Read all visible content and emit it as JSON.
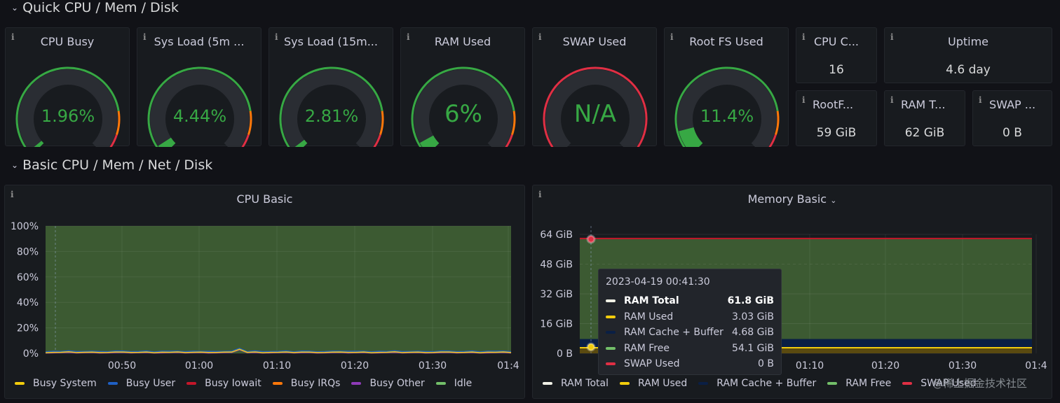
{
  "rows": {
    "quick": "Quick CPU / Mem / Disk",
    "basic": "Basic CPU / Mem / Net / Disk"
  },
  "info_glyph": "i",
  "gauges": [
    {
      "title": "CPU Busy",
      "value": "1.96%",
      "fraction": 0.0196
    },
    {
      "title": "Sys Load (5m ...",
      "value": "4.44%",
      "fraction": 0.0444
    },
    {
      "title": "Sys Load (15m...",
      "value": "2.81%",
      "fraction": 0.0281
    },
    {
      "title": "RAM Used",
      "value": "6%",
      "fraction": 0.06
    },
    {
      "title": "SWAP Used",
      "value": "N/A",
      "fraction": 0
    },
    {
      "title": "Root FS Used",
      "value": "11.4%",
      "fraction": 0.114
    }
  ],
  "stats": [
    {
      "title": "CPU C...",
      "value": "16"
    },
    {
      "title": "Uptime",
      "value": "4.6 day"
    },
    {
      "title": "RootF...",
      "value": "59 GiB"
    },
    {
      "title": "RAM T...",
      "value": "62 GiB"
    },
    {
      "title": "SWAP ...",
      "value": "0 B"
    }
  ],
  "colors": {
    "green": "#37a844",
    "yellow": "#f2cc0c",
    "orange": "#ff780a",
    "red": "#e02f44",
    "blue": "#1f60c4",
    "purple": "#8f3bb8",
    "lightgreen": "#73bf69",
    "white": "#f0f0e6",
    "darkred": "#c4162a",
    "navy": "#0a1f45",
    "panel_bg": "#181b1f",
    "area": "#3c5a32"
  },
  "cpu_panel": {
    "title": "CPU Basic"
  },
  "memory_panel": {
    "title": "Memory Basic",
    "title_icon": "chevron-down-icon"
  },
  "chart_data": [
    {
      "type": "area",
      "title": "CPU Basic",
      "y_ticks": [
        "100%",
        "80%",
        "60%",
        "40%",
        "20%",
        "0%"
      ],
      "x_ticks": [
        "00:50",
        "01:00",
        "01:10",
        "01:20",
        "01:30",
        "01:4"
      ],
      "ylim": [
        0,
        100
      ],
      "series": [
        {
          "name": "Busy System",
          "color": "#f2cc0c",
          "values": [
            0.5,
            0.6,
            0.5,
            0.7,
            0.5,
            0.6
          ]
        },
        {
          "name": "Busy User",
          "color": "#1f60c4",
          "values": [
            1.2,
            1.4,
            1.1,
            1.5,
            1.3,
            1.2
          ]
        },
        {
          "name": "Busy Iowait",
          "color": "#c4162a",
          "values": [
            0,
            0,
            0,
            0,
            0,
            0
          ]
        },
        {
          "name": "Busy IRQs",
          "color": "#ff780a",
          "values": [
            0,
            0,
            0,
            0,
            0,
            0
          ]
        },
        {
          "name": "Busy Other",
          "color": "#8f3bb8",
          "values": [
            0.2,
            0.2,
            0.2,
            0.2,
            0.2,
            0.2
          ]
        },
        {
          "name": "Idle",
          "color": "#73bf69",
          "values": [
            98,
            97.8,
            98.2,
            97.6,
            98,
            98
          ]
        }
      ]
    },
    {
      "type": "area",
      "title": "Memory Basic",
      "y_ticks": [
        "64 GiB",
        "48 GiB",
        "32 GiB",
        "16 GiB",
        "0 B"
      ],
      "x_ticks": [
        "01:10",
        "01:20",
        "01:30",
        "01:4"
      ],
      "ylim": [
        0,
        64
      ],
      "series": [
        {
          "name": "RAM Total",
          "color": "#f0f0e6",
          "value_gib": 61.8
        },
        {
          "name": "RAM Used",
          "color": "#f2cc0c",
          "value_gib": 3.03
        },
        {
          "name": "RAM Cache + Buffer",
          "color": "#0a1f45",
          "value_gib": 4.68
        },
        {
          "name": "RAM Free",
          "color": "#73bf69",
          "value_gib": 54.1
        },
        {
          "name": "SWAP Used",
          "color": "#e02f44",
          "value_gib": 0
        }
      ]
    }
  ],
  "tooltip": {
    "time": "2023-04-19 00:41:30",
    "rows": [
      {
        "name": "RAM Total",
        "value": "61.8 GiB",
        "color": "#f0f0e6"
      },
      {
        "name": "RAM Used",
        "value": "3.03 GiB",
        "color": "#f2cc0c"
      },
      {
        "name": "RAM Cache + Buffer",
        "value": "4.68 GiB",
        "color": "#0a1f45"
      },
      {
        "name": "RAM Free",
        "value": "54.1 GiB",
        "color": "#73bf69"
      },
      {
        "name": "SWAP Used",
        "value": "0 B",
        "color": "#e02f44"
      }
    ]
  },
  "watermark": "@稀土掘金技术社区"
}
